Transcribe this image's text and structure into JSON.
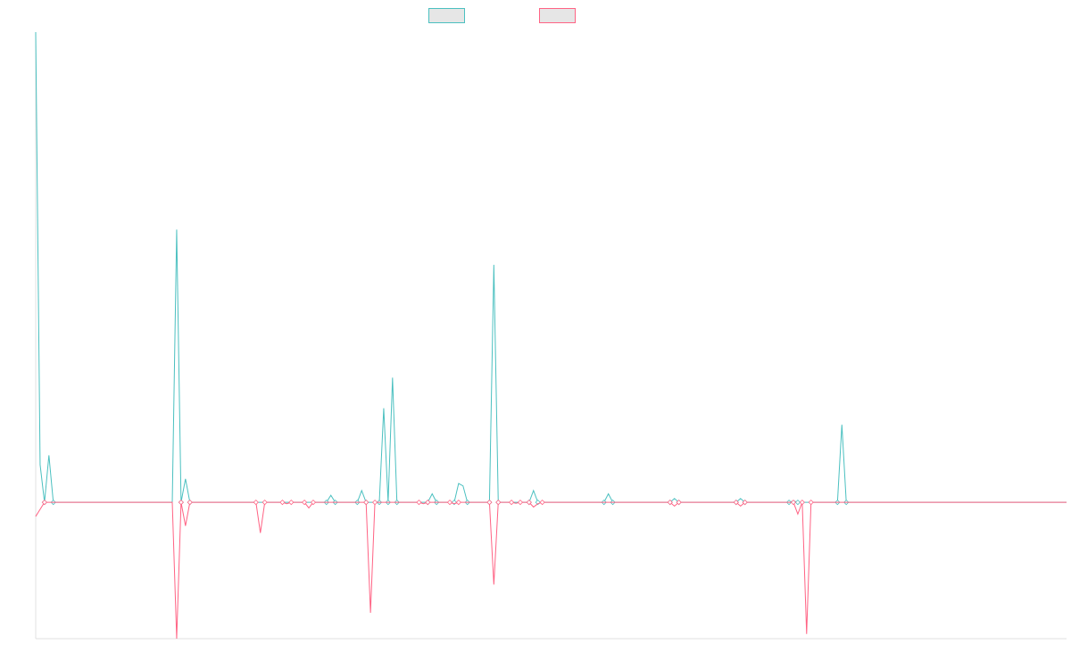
{
  "chart_data": {
    "type": "line",
    "title": "",
    "xlabel": "",
    "ylabel": "",
    "x_count": 235,
    "ylim": [
      -0.29,
      1.0
    ],
    "grid": false,
    "legend_position": "top-center",
    "series": [
      {
        "color": "#4bc0c0",
        "fill": "#e6e6e6",
        "points": [
          [
            0,
            1.0
          ],
          [
            1,
            0.08
          ],
          [
            2,
            0.0
          ],
          [
            3,
            0.1
          ],
          [
            4,
            0.0
          ],
          [
            32,
            0.58
          ],
          [
            33,
            0.0
          ],
          [
            34,
            0.05
          ],
          [
            35,
            0.0
          ],
          [
            62,
            0.0
          ],
          [
            66,
            0.0
          ],
          [
            67,
            0.015
          ],
          [
            68,
            0.0
          ],
          [
            73,
            0.0
          ],
          [
            74,
            0.025
          ],
          [
            75,
            0.0
          ],
          [
            78,
            0.0
          ],
          [
            79,
            0.2
          ],
          [
            80,
            0.0
          ],
          [
            81,
            0.265
          ],
          [
            82,
            0.0
          ],
          [
            89,
            0.0
          ],
          [
            90,
            0.018
          ],
          [
            91,
            0.0
          ],
          [
            95,
            0.0
          ],
          [
            96,
            0.04
          ],
          [
            97,
            0.035
          ],
          [
            98,
            0.0
          ],
          [
            103,
            0.0
          ],
          [
            104,
            0.505
          ],
          [
            105,
            0.0
          ],
          [
            112,
            0.0
          ],
          [
            113,
            0.025
          ],
          [
            114,
            0.0
          ],
          [
            129,
            0.0
          ],
          [
            130,
            0.018
          ],
          [
            131,
            0.0
          ],
          [
            144,
            0.0
          ],
          [
            145,
            0.008
          ],
          [
            146,
            0.0
          ],
          [
            159,
            0.0
          ],
          [
            160,
            0.008
          ],
          [
            161,
            0.0
          ],
          [
            171,
            0.0
          ],
          [
            172,
            0.003
          ],
          [
            173,
            0.0
          ],
          [
            182,
            0.0
          ],
          [
            183,
            0.165
          ],
          [
            184,
            0.0
          ],
          [
            234,
            0.0
          ]
        ]
      },
      {
        "color": "#ff6384",
        "fill": "#e6e6e6",
        "points": [
          [
            0,
            -0.03
          ],
          [
            1,
            -0.015
          ],
          [
            2,
            0.0
          ],
          [
            32,
            -0.29
          ],
          [
            33,
            0.0
          ],
          [
            34,
            -0.05
          ],
          [
            35,
            0.0
          ],
          [
            50,
            0.0
          ],
          [
            51,
            -0.065
          ],
          [
            52,
            0.0
          ],
          [
            56,
            0.0
          ],
          [
            57,
            -0.003
          ],
          [
            58,
            0.0
          ],
          [
            61,
            0.0
          ],
          [
            62,
            -0.012
          ],
          [
            63,
            0.0
          ],
          [
            75,
            0.0
          ],
          [
            76,
            -0.235
          ],
          [
            77,
            0.0
          ],
          [
            87,
            0.0
          ],
          [
            88,
            -0.003
          ],
          [
            89,
            0.0
          ],
          [
            94,
            0.0
          ],
          [
            95,
            -0.003
          ],
          [
            96,
            0.0
          ],
          [
            103,
            0.0
          ],
          [
            104,
            -0.175
          ],
          [
            105,
            0.0
          ],
          [
            108,
            0.0
          ],
          [
            109,
            -0.002
          ],
          [
            110,
            0.0
          ],
          [
            112,
            0.0
          ],
          [
            113,
            -0.01
          ],
          [
            114,
            -0.003
          ],
          [
            115,
            0.0
          ],
          [
            144,
            0.0
          ],
          [
            145,
            -0.008
          ],
          [
            146,
            0.0
          ],
          [
            159,
            0.0
          ],
          [
            160,
            -0.008
          ],
          [
            161,
            0.0
          ],
          [
            172,
            0.0
          ],
          [
            173,
            -0.025
          ],
          [
            174,
            0.0
          ],
          [
            175,
            -0.28
          ],
          [
            176,
            0.0
          ],
          [
            234,
            0.0
          ]
        ]
      }
    ]
  }
}
